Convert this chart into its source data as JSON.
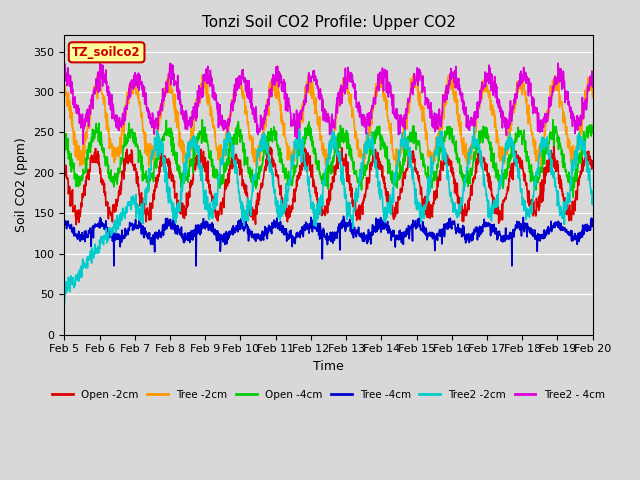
{
  "title": "Tonzi Soil CO2 Profile: Upper CO2",
  "ylabel": "Soil CO2 (ppm)",
  "xlabel": "Time",
  "ylim": [
    0,
    370
  ],
  "xlim_hours": 360,
  "legend_label": "TZ_soilco2",
  "series_labels": [
    "Open -2cm",
    "Tree -2cm",
    "Open -4cm",
    "Tree -4cm",
    "Tree2 -2cm",
    "Tree2 - 4cm"
  ],
  "series_colors": [
    "#dd0000",
    "#ff9900",
    "#00cc00",
    "#0000cc",
    "#00cccc",
    "#dd00dd"
  ],
  "x_tick_labels": [
    "Feb 5",
    "Feb 6",
    "Feb 7",
    "Feb 8",
    "Feb 9",
    "Feb 10",
    "Feb 11",
    "Feb 12",
    "Feb 13",
    "Feb 14",
    "Feb 15",
    "Feb 16",
    "Feb 17",
    "Feb 18",
    "Feb 19",
    "Feb 20"
  ],
  "background_color": "#d8d8d8",
  "plot_bg_color": "#d8d8d8",
  "grid_color": "#ffffff",
  "title_fontsize": 11,
  "axis_fontsize": 9,
  "tick_fontsize": 8,
  "legend_box_color": "#ffff99",
  "legend_box_edge": "#cc0000",
  "legend_box_text": "#cc0000"
}
